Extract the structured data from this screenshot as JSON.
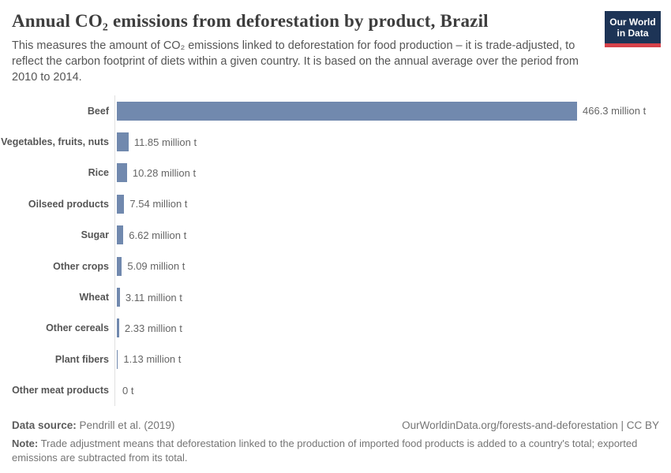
{
  "header": {
    "title": "Annual CO₂ emissions from deforestation by product, Brazil",
    "subtitle": "This measures the amount of CO₂ emissions linked to deforestation for food production – it is trade-adjusted, to reflect the carbon footprint of diets within a given country. It is based on the annual average over the period from 2010 to 2014.",
    "logo": {
      "line1": "Our World",
      "line2": "in Data",
      "bg_color": "#1d3456",
      "stripe_color": "#d6424a"
    }
  },
  "chart_data": {
    "type": "bar",
    "orientation": "horizontal",
    "title": "Annual CO₂ emissions from deforestation by product, Brazil",
    "unit": "million t",
    "categories": [
      "Beef",
      "Vegetables, fruits, nuts",
      "Rice",
      "Oilseed products",
      "Sugar",
      "Other crops",
      "Wheat",
      "Other cereals",
      "Plant fibers",
      "Other meat products"
    ],
    "values": [
      466.3,
      11.85,
      10.28,
      7.54,
      6.62,
      5.09,
      3.11,
      2.33,
      1.13,
      0
    ],
    "value_labels": [
      "466.3 million t",
      "11.85 million t",
      "10.28 million t",
      "7.54 million t",
      "6.62 million t",
      "5.09 million t",
      "3.11 million t",
      "2.33 million t",
      "1.13 million t",
      "0 t"
    ],
    "xlim": [
      0,
      466.3
    ],
    "grid": false,
    "legend": false,
    "bar_color": "#7189ae",
    "axis_color": "#e0e0e0"
  },
  "footer": {
    "data_source_label": "Data source:",
    "data_source": " Pendrill et al. (2019)",
    "link": "OurWorldinData.org/forests-and-deforestation | CC BY",
    "note_label": "Note:",
    "note": " Trade adjustment means that deforestation linked to the production of imported food products is added to a country's total; exported emissions are subtracted from its total."
  }
}
